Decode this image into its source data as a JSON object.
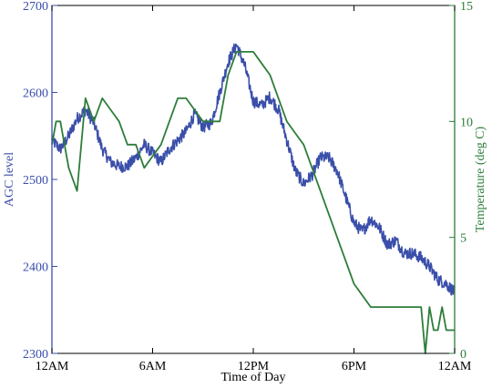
{
  "chart_data": {
    "type": "line",
    "title": "",
    "xlabel": "Time of Day",
    "ylabel_left": "AGC level",
    "ylabel_right": "Temperature (deg C)",
    "xlim": [
      0,
      24
    ],
    "ylim_left": [
      2300,
      2700
    ],
    "ylim_right": [
      0,
      15
    ],
    "x_ticks": [
      {
        "value": 0,
        "label": "12AM"
      },
      {
        "value": 6,
        "label": "6AM"
      },
      {
        "value": 12,
        "label": "12PM"
      },
      {
        "value": 18,
        "label": "6PM"
      },
      {
        "value": 24,
        "label": "12AM"
      }
    ],
    "y_ticks_left": [
      2300,
      2400,
      2500,
      2600,
      2700
    ],
    "y_ticks_right": [
      0,
      5,
      10,
      15
    ],
    "grid": false,
    "colors": {
      "agc": "#3a4eaa",
      "temperature": "#2e7d3a",
      "axis": "#000000"
    },
    "series": [
      {
        "axis": "left",
        "x": [
          0,
          0.5,
          1,
          1.5,
          2,
          2.5,
          3,
          3.5,
          4,
          4.5,
          5,
          5.5,
          6,
          6.5,
          7,
          7.5,
          8,
          8.5,
          9,
          9.5,
          10,
          10.5,
          11,
          11.5,
          12,
          12.5,
          13,
          13.5,
          14,
          14.5,
          15,
          15.5,
          16,
          16.5,
          17,
          17.5,
          18,
          18.5,
          19,
          19.5,
          20,
          20.5,
          21,
          21.5,
          22,
          22.5,
          23,
          23.5,
          24
        ],
        "y": [
          2545,
          2535,
          2550,
          2570,
          2580,
          2565,
          2535,
          2520,
          2515,
          2515,
          2525,
          2540,
          2530,
          2520,
          2535,
          2545,
          2555,
          2575,
          2560,
          2565,
          2600,
          2635,
          2655,
          2630,
          2590,
          2585,
          2595,
          2580,
          2545,
          2510,
          2495,
          2505,
          2525,
          2525,
          2510,
          2480,
          2450,
          2440,
          2455,
          2445,
          2425,
          2430,
          2415,
          2415,
          2410,
          2400,
          2385,
          2380,
          2370
        ]
      },
      {
        "axis": "right",
        "x": [
          0,
          0.25,
          0.5,
          1,
          1.5,
          2,
          2.25,
          2.5,
          3,
          3.5,
          4,
          4.5,
          5,
          5.5,
          6,
          6.5,
          7,
          7.5,
          8,
          8.5,
          9,
          9.5,
          10,
          10.5,
          11,
          11.5,
          12,
          12.5,
          13,
          13.5,
          14,
          14.5,
          15,
          15.5,
          16,
          16.5,
          17,
          17.5,
          18,
          18.5,
          19,
          19.5,
          20,
          20.5,
          21,
          21.5,
          22,
          22.25,
          22.5,
          22.75,
          23,
          23.25,
          23.5,
          24
        ],
        "y": [
          9,
          10,
          10,
          8,
          7,
          11,
          10.5,
          10,
          11,
          10.5,
          10,
          9,
          9,
          8,
          8.5,
          9,
          10,
          11,
          11,
          10.5,
          10,
          10,
          10,
          12,
          13,
          13,
          13,
          12.5,
          12,
          11,
          10,
          9.5,
          9,
          8,
          7,
          6,
          5,
          4,
          3,
          2.5,
          2,
          2,
          2,
          2,
          2,
          2,
          2,
          0,
          2,
          1,
          1,
          2,
          1,
          1
        ]
      }
    ]
  }
}
